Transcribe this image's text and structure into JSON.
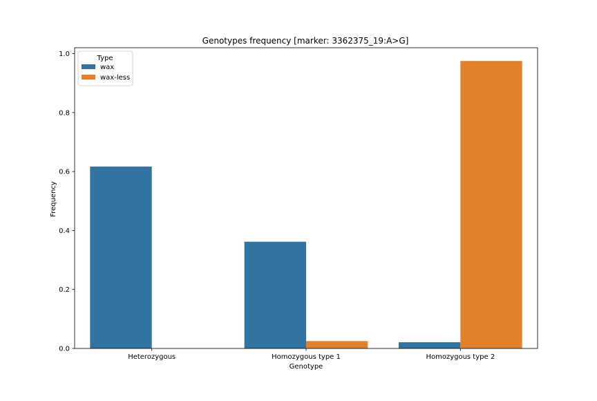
{
  "chart_data": {
    "type": "bar",
    "title": "Genotypes frequency [marker: 3362375_19:A>G]",
    "xlabel": "Genotype",
    "ylabel": "Frequency",
    "categories": [
      "Heterozygous",
      "Homozygous type 1",
      "Homozygous type 2"
    ],
    "series": [
      {
        "name": "wax",
        "color": "#3274a1",
        "values": [
          0.617,
          0.362,
          0.021
        ]
      },
      {
        "name": "wax-less",
        "color": "#e1812c",
        "values": [
          0.0,
          0.025,
          0.975
        ]
      }
    ],
    "ylim": [
      0,
      1.02
    ],
    "yticks": [
      "0.0",
      "0.2",
      "0.4",
      "0.6",
      "0.8",
      "1.0"
    ],
    "legend": {
      "title": "Type",
      "position": "top-left"
    },
    "grid": false
  }
}
